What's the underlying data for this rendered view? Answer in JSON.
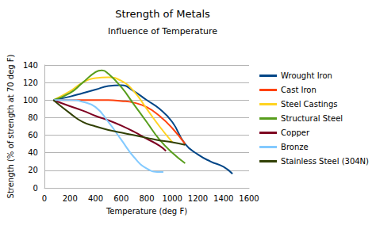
{
  "chart_data": {
    "type": "line",
    "title": "Strength of Metals",
    "subtitle": "Influence of Temperature",
    "x_label": "Temperature (deg F)",
    "y_label": "Strength (% of strength at 70 deg F)",
    "xlim": [
      0,
      1600
    ],
    "xticks": [
      0,
      200,
      400,
      600,
      800,
      1000,
      1200,
      1400,
      1600
    ],
    "ylim": [
      0,
      140
    ],
    "yticks": [
      0,
      20,
      40,
      60,
      80,
      100,
      120,
      140
    ],
    "grid": true,
    "legend": "right",
    "series": [
      {
        "name": "Wrought Iron",
        "color": "#004586",
        "x": [
          70,
          200,
          300,
          400,
          500,
          600,
          700,
          800,
          900,
          1000,
          1100,
          1200,
          1300,
          1400,
          1470
        ],
        "values": [
          100,
          104,
          108,
          112,
          116,
          117,
          110,
          100,
          90,
          75,
          50,
          38,
          30,
          24,
          16
        ]
      },
      {
        "name": "Cast Iron",
        "color": "#ff420e",
        "x": [
          70,
          300,
          500,
          600,
          700,
          800,
          900,
          1000,
          1100
        ],
        "values": [
          100,
          100,
          100,
          99,
          97,
          92,
          82,
          68,
          50
        ]
      },
      {
        "name": "Steel Castings",
        "color": "#ffd320",
        "x": [
          70,
          200,
          300,
          400,
          500,
          600,
          700,
          800,
          900,
          1000
        ],
        "values": [
          100,
          110,
          120,
          125,
          126,
          122,
          110,
          90,
          70,
          52
        ]
      },
      {
        "name": "Structural Steel",
        "color": "#579d1c",
        "x": [
          70,
          200,
          300,
          400,
          450,
          500,
          600,
          700,
          800,
          900,
          1000,
          1100
        ],
        "values": [
          100,
          108,
          120,
          132,
          134,
          130,
          115,
          95,
          75,
          55,
          40,
          28
        ]
      },
      {
        "name": "Copper",
        "color": "#7e0021",
        "x": [
          70,
          200,
          300,
          400,
          500,
          600,
          700,
          800,
          900,
          950
        ],
        "values": [
          100,
          93,
          88,
          82,
          77,
          71,
          64,
          56,
          48,
          42
        ]
      },
      {
        "name": "Bronze",
        "color": "#83caff",
        "x": [
          70,
          200,
          300,
          400,
          500,
          600,
          700,
          800,
          900,
          930
        ],
        "values": [
          100,
          100,
          98,
          92,
          75,
          55,
          35,
          22,
          18,
          18
        ]
      },
      {
        "name": "Stainless Steel (304N)",
        "color": "#314004",
        "x": [
          70,
          200,
          300,
          400,
          500,
          600,
          700,
          800,
          900,
          1000,
          1100
        ],
        "values": [
          100,
          85,
          75,
          70,
          66,
          63,
          60,
          57,
          54,
          52,
          49
        ]
      }
    ]
  }
}
